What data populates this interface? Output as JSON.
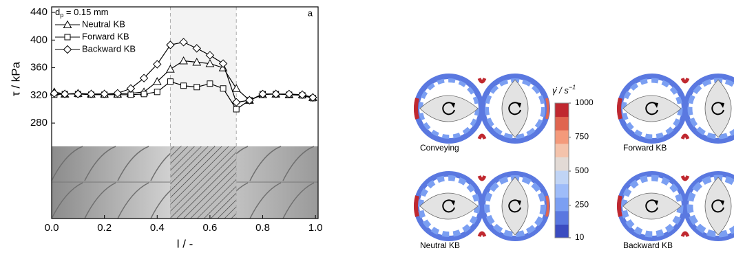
{
  "chart_data": {
    "type": "line",
    "annotation": {
      "symbol": "d",
      "subscript": "p",
      "text": " = 0.15 mm"
    },
    "panel_label": "a",
    "x_label": "l / -",
    "y_label": "τ / kPa",
    "xlim": [
      0,
      1.01
    ],
    "ylim": [
      142,
      448
    ],
    "xticks": [
      {
        "value": 0,
        "label": "0.0"
      },
      {
        "value": 0.2,
        "label": "0.2"
      },
      {
        "value": 0.4,
        "label": "0.4"
      },
      {
        "value": 0.6,
        "label": "0.6"
      },
      {
        "value": 0.8,
        "label": "0.8"
      },
      {
        "value": 1,
        "label": "1.0"
      }
    ],
    "yticks": [
      280,
      320,
      360,
      400,
      440
    ],
    "shaded_region": [
      0.45,
      0.7
    ],
    "legend": "upper left",
    "x": [
      0.01,
      0.05,
      0.1,
      0.15,
      0.2,
      0.25,
      0.3,
      0.35,
      0.4,
      0.45,
      0.5,
      0.55,
      0.6,
      0.65,
      0.7,
      0.75,
      0.8,
      0.85,
      0.9,
      0.95,
      0.99
    ],
    "series": [
      {
        "name": "Neutral KB",
        "marker": "triangle",
        "color": "#000000",
        "values": [
          325,
          322,
          323,
          322,
          322,
          322,
          323,
          325,
          340,
          358,
          370,
          368,
          366,
          360,
          330,
          313,
          321,
          322,
          321,
          321,
          317
        ]
      },
      {
        "name": "Forward KB",
        "marker": "square",
        "color": "#000000",
        "values": [
          321,
          322,
          322,
          321,
          321,
          321,
          321,
          322,
          325,
          340,
          334,
          332,
          337,
          330,
          300,
          313,
          322,
          322,
          321,
          320,
          316
        ]
      },
      {
        "name": "Backward KB",
        "marker": "diamond",
        "color": "#000000",
        "values": [
          323,
          322,
          322,
          322,
          322,
          323,
          330,
          345,
          365,
          393,
          397,
          388,
          378,
          366,
          310,
          313,
          322,
          322,
          322,
          321,
          317
        ]
      }
    ]
  },
  "figure": {
    "colorbar": {
      "symbol": "γ̇",
      "text": " / s",
      "superscript": "−1",
      "lim": [
        10,
        1000
      ],
      "ticks": [
        1000,
        750,
        500,
        250,
        10
      ],
      "colors": [
        "#3b4cc0",
        "#5a78e0",
        "#7b9ff2",
        "#9ebcf9",
        "#c0d4f5",
        "#e2dad5",
        "#f4c3ab",
        "#f49a7b",
        "#e0654f",
        "#c0282f"
      ]
    },
    "panels": [
      {
        "label": "Conveying"
      },
      {
        "label": "Forward KB"
      },
      {
        "label": "Neutral KB"
      },
      {
        "label": "Backward KB"
      }
    ]
  }
}
